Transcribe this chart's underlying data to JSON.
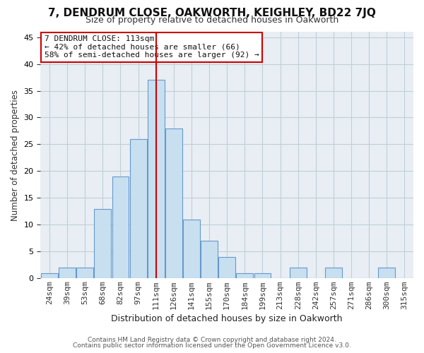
{
  "title_line1": "7, DENDRUM CLOSE, OAKWORTH, KEIGHLEY, BD22 7JQ",
  "title_line2": "Size of property relative to detached houses in Oakworth",
  "xlabel": "Distribution of detached houses by size in Oakworth",
  "ylabel": "Number of detached properties",
  "footer_line1": "Contains HM Land Registry data © Crown copyright and database right 2024.",
  "footer_line2": "Contains public sector information licensed under the Open Government Licence v3.0.",
  "annotation_line1": "7 DENDRUM CLOSE: 113sqm",
  "annotation_line2": "← 42% of detached houses are smaller (66)",
  "annotation_line3": "58% of semi-detached houses are larger (92) →",
  "bar_labels": [
    "24sqm",
    "39sqm",
    "53sqm",
    "68sqm",
    "82sqm",
    "97sqm",
    "111sqm",
    "126sqm",
    "141sqm",
    "155sqm",
    "170sqm",
    "184sqm",
    "199sqm",
    "213sqm",
    "228sqm",
    "242sqm",
    "257sqm",
    "271sqm",
    "286sqm",
    "300sqm",
    "315sqm"
  ],
  "bar_heights": [
    1,
    2,
    2,
    13,
    19,
    26,
    37,
    28,
    11,
    7,
    4,
    1,
    1,
    0,
    2,
    0,
    2,
    0,
    0,
    2,
    0
  ],
  "highlight_index": 6,
  "bar_color": "#c8dff0",
  "bar_edgecolor": "#6699cc",
  "highlight_line_color": "#cc0000",
  "background_color": "#ffffff",
  "plot_background": "#e8eef4",
  "grid_color": "#c0cfd8",
  "annotation_box_color": "#ffffff",
  "annotation_box_edgecolor": "#cc0000",
  "ylim": [
    0,
    46
  ],
  "yticks": [
    0,
    5,
    10,
    15,
    20,
    25,
    30,
    35,
    40,
    45
  ],
  "title_fontsize": 11,
  "subtitle_fontsize": 9,
  "ylabel_fontsize": 8.5,
  "xlabel_fontsize": 9,
  "tick_fontsize": 8,
  "annotation_fontsize": 8,
  "footer_fontsize": 6.5
}
